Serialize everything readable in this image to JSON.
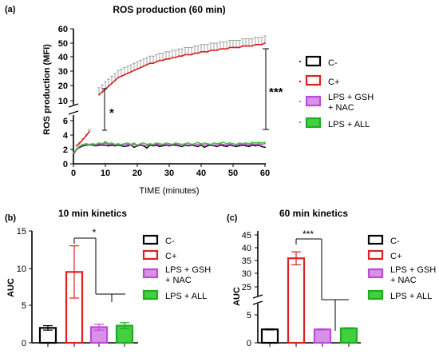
{
  "figure": {
    "chart_data": [
      {
        "panel": "(a)",
        "type": "line",
        "title": "ROS production (60 min)",
        "xlabel": "TIME (minutes)",
        "ylabel": "ROS production (MFI)",
        "x_ticks": [
          "0",
          "10",
          "20",
          "30",
          "40",
          "50",
          "60"
        ],
        "y_ticks_top": [
          "10",
          "20",
          "30",
          "40",
          "50",
          "60"
        ],
        "y_ticks_bottom": [
          "0",
          "2",
          "4",
          "6"
        ],
        "xlim": [
          0,
          60
        ],
        "ylim_bottom": [
          0,
          6
        ],
        "ylim_top": [
          6,
          60
        ],
        "axis_break": "between 6 and 10",
        "x": [
          0,
          1,
          2,
          3,
          4,
          5,
          6,
          7,
          8,
          9,
          10,
          11,
          12,
          13,
          14,
          15,
          16,
          17,
          18,
          19,
          20,
          21,
          22,
          23,
          24,
          25,
          26,
          27,
          28,
          29,
          30,
          31,
          32,
          33,
          34,
          35,
          36,
          37,
          38,
          39,
          40,
          41,
          42,
          43,
          44,
          45,
          46,
          47,
          48,
          49,
          50,
          51,
          52,
          53,
          54,
          55,
          56,
          57,
          58,
          59,
          60
        ],
        "series": [
          {
            "name": "C-",
            "color": "#000000",
            "marker": "square-open",
            "values": [
              1.3,
              2.0,
              2.3,
              2.5,
              2.6,
              2.6,
              2.6,
              2.5,
              2.6,
              2.6,
              2.6,
              2.5,
              2.6,
              2.5,
              2.6,
              2.5,
              2.4,
              2.5,
              2.6,
              2.3,
              2.5,
              2.6,
              2.5,
              2.2,
              2.6,
              2.5,
              2.6,
              2.4,
              2.5,
              2.6,
              2.5,
              2.6,
              2.6,
              2.5,
              2.4,
              2.6,
              2.5,
              2.6,
              2.5,
              2.4,
              2.6,
              2.3,
              2.5,
              2.6,
              2.5,
              2.4,
              2.6,
              2.5,
              2.4,
              2.6,
              2.5,
              2.4,
              2.5,
              2.6,
              2.5,
              2.4,
              2.6,
              2.5,
              2.6,
              2.4,
              2.3
            ],
            "errors": []
          },
          {
            "name": "C+",
            "color": "#d62020",
            "marker": "square-open",
            "values": [
              null,
              2.5,
              2.9,
              3.4,
              3.9,
              4.5,
              null,
              null,
              14,
              16,
              18,
              20,
              22,
              24,
              26,
              27,
              28,
              29,
              30,
              31,
              32,
              33,
              34,
              35,
              36,
              36,
              37,
              38,
              38,
              39,
              39,
              40,
              40,
              41,
              41,
              42,
              42,
              42,
              43,
              43,
              44,
              44,
              44,
              45,
              45,
              45,
              46,
              46,
              46,
              47,
              47,
              47,
              47,
              48,
              48,
              48,
              48,
              49,
              49,
              49,
              50
            ],
            "errors": [
              0,
              0.1,
              0.1,
              0.1,
              0.2,
              0.2,
              0,
              0,
              5,
              5,
              5,
              5,
              5,
              5,
              5,
              5,
              5,
              5,
              5,
              5,
              5,
              5,
              5,
              5,
              5,
              5,
              5,
              5,
              5,
              5,
              5,
              5,
              5,
              5,
              5,
              5,
              5,
              5,
              5,
              5,
              5,
              5,
              5,
              5,
              5,
              5,
              5,
              5,
              5,
              5,
              5,
              5,
              5,
              5,
              5,
              5,
              5,
              5,
              5,
              5,
              5
            ]
          },
          {
            "name": "LPS + GSH + NAC",
            "color": "#c04ad8",
            "marker": "square-hatched",
            "values": [
              1.4,
              2.0,
              2.4,
              2.6,
              2.7,
              2.6,
              2.7,
              2.6,
              2.8,
              2.7,
              2.9,
              2.7,
              2.8,
              2.6,
              2.7,
              2.6,
              2.7,
              2.7,
              2.6,
              2.7,
              2.6,
              2.7,
              2.6,
              2.5,
              2.7,
              2.6,
              2.8,
              2.6,
              2.7,
              2.7,
              2.6,
              2.7,
              2.8,
              2.6,
              2.7,
              2.7,
              2.6,
              2.7,
              2.6,
              2.7,
              2.8,
              2.6,
              2.7,
              2.7,
              2.6,
              2.7,
              2.8,
              2.7,
              2.6,
              2.7,
              2.8,
              2.6,
              2.7,
              2.8,
              2.7,
              2.6,
              2.8,
              2.7,
              2.8,
              2.7,
              2.8
            ],
            "errors": []
          },
          {
            "name": "LPS + ALL",
            "color": "#3cc83c",
            "marker": "square-filled",
            "values": [
              1.5,
              2.1,
              2.5,
              2.7,
              2.8,
              2.7,
              2.8,
              2.7,
              2.9,
              2.8,
              3.1,
              2.8,
              2.9,
              2.7,
              2.8,
              2.7,
              2.8,
              2.9,
              2.7,
              2.9,
              2.6,
              2.8,
              2.9,
              2.7,
              2.8,
              2.7,
              2.9,
              2.8,
              2.7,
              2.9,
              2.8,
              2.7,
              2.9,
              2.8,
              2.7,
              2.8,
              2.9,
              2.7,
              2.8,
              3.0,
              2.7,
              2.9,
              2.8,
              2.7,
              2.9,
              2.8,
              2.9,
              3.0,
              2.8,
              2.9,
              2.8,
              2.7,
              2.9,
              2.8,
              2.9,
              2.8,
              3.0,
              2.9,
              3.0,
              2.9,
              3.0
            ],
            "errors": []
          }
        ],
        "annotations": [
          {
            "text": "*",
            "at_x": 11
          },
          {
            "text": "***",
            "at_x": 60
          }
        ],
        "legend_placement": "right"
      },
      {
        "panel": "(b)",
        "type": "bar",
        "title": "10 min kinetics",
        "ylabel": "AUC",
        "y_ticks": [
          "0",
          "5",
          "10",
          "15"
        ],
        "ylim": [
          0,
          15
        ],
        "categories": [
          "C-",
          "C+",
          "LPS + GSH + NAC",
          "LPS + ALL"
        ],
        "values": [
          2.0,
          9.5,
          2.1,
          2.3
        ],
        "errors": [
          0.3,
          3.5,
          0.4,
          0.4
        ],
        "colors": [
          "#000000",
          "#e02020",
          "#c04ad8",
          "#22aa22"
        ],
        "fills": [
          "#ffffff",
          "#ffffff",
          "#d890e8",
          "#40d040"
        ],
        "significance": "*",
        "legend_placement": "right"
      },
      {
        "panel": "(c)",
        "type": "bar",
        "title": "60 min kinetics",
        "ylabel": "AUC",
        "y_ticks": [
          "0",
          "5",
          "25",
          "30",
          "35",
          "40",
          "45"
        ],
        "ylim": [
          0,
          45
        ],
        "axis_break": "between 5 and 25",
        "categories": [
          "C-",
          "C+",
          "LPS + GSH + NAC",
          "LPS + ALL"
        ],
        "values": [
          2.4,
          36,
          2.4,
          2.6
        ],
        "errors": [
          0.1,
          2.5,
          0.1,
          0.1
        ],
        "colors": [
          "#000000",
          "#e02020",
          "#c04ad8",
          "#22aa22"
        ],
        "fills": [
          "#ffffff",
          "#ffffff",
          "#d890e8",
          "#40d040"
        ],
        "significance": "***",
        "legend_placement": "right"
      }
    ]
  },
  "legend": {
    "items": [
      {
        "label": "C-",
        "label_lines": [
          "C-"
        ],
        "color": "#000000",
        "fill": "#ffffff"
      },
      {
        "label": "C+",
        "label_lines": [
          "C+"
        ],
        "color": "#e02020",
        "fill": "#ffffff"
      },
      {
        "label": "LPS + GSH + NAC",
        "label_lines": [
          "LPS + GSH",
          "+ NAC"
        ],
        "color": "#c04ad8",
        "fill": "#d890e8"
      },
      {
        "label": "LPS + ALL",
        "label_lines": [
          "LPS + ALL"
        ],
        "color": "#22aa22",
        "fill": "#40d040"
      }
    ]
  }
}
